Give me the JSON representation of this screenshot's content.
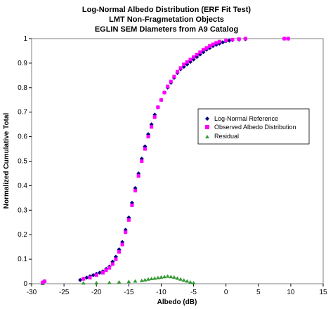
{
  "chart_data": {
    "type": "scatter",
    "title_lines": [
      "Log-Normal Albedo Distribution (ERF Fit Test)",
      "LMT Non-Fragmetation Objects",
      "EGLIN SEM Diameters from A9 Catalog"
    ],
    "xlabel": "Albedo (dB)",
    "ylabel": "Normalized Cumulative Total",
    "xlim": [
      -30,
      15
    ],
    "ylim": [
      0,
      1
    ],
    "x_ticks": [
      -30,
      -25,
      -20,
      -15,
      -10,
      -5,
      0,
      5,
      10,
      15
    ],
    "y_ticks": [
      0,
      0.1,
      0.2,
      0.3,
      0.4,
      0.5,
      0.6,
      0.7,
      0.8,
      0.9,
      1
    ],
    "x_tick_labels": [
      "-30",
      "-25",
      "-20",
      "-15",
      "-10",
      "-5",
      "0",
      "5",
      "10",
      "15"
    ],
    "y_tick_labels": [
      "0",
      "0.1",
      "0.2",
      "0.3",
      "0.4",
      "0.5",
      "0.6",
      "0.7",
      "0.8",
      "0.9",
      "1"
    ],
    "grid": false,
    "legend_position": "right",
    "series": [
      {
        "name": "Log-Normal Reference",
        "marker": "diamond",
        "color": "#000080",
        "x": [
          -28.3,
          -28.0,
          -22.5,
          -22.0,
          -21.5,
          -21.0,
          -20.5,
          -20.0,
          -19.5,
          -19.0,
          -18.5,
          -18.0,
          -17.5,
          -17.0,
          -16.5,
          -16.0,
          -15.5,
          -15.0,
          -14.5,
          -14.0,
          -13.5,
          -13.0,
          -12.5,
          -12.0,
          -11.5,
          -11.0,
          -10.5,
          -10.0,
          -9.5,
          -9.0,
          -8.5,
          -8.0,
          -7.5,
          -7.0,
          -6.5,
          -6.0,
          -5.5,
          -5.0,
          -4.5,
          -4.0,
          -3.5,
          -3.0,
          -2.5,
          -2.0,
          -1.5,
          -1.0,
          -0.5,
          0.0,
          0.5,
          1.0,
          2.0,
          3.0,
          9.0,
          9.6
        ],
        "y": [
          0.005,
          0.01,
          0.015,
          0.02,
          0.025,
          0.03,
          0.035,
          0.04,
          0.045,
          0.05,
          0.06,
          0.07,
          0.09,
          0.11,
          0.14,
          0.17,
          0.22,
          0.27,
          0.33,
          0.39,
          0.45,
          0.51,
          0.56,
          0.61,
          0.65,
          0.69,
          0.72,
          0.75,
          0.78,
          0.8,
          0.82,
          0.84,
          0.86,
          0.875,
          0.885,
          0.895,
          0.905,
          0.915,
          0.925,
          0.935,
          0.945,
          0.955,
          0.962,
          0.97,
          0.975,
          0.98,
          0.985,
          0.99,
          0.992,
          0.994,
          0.996,
          0.998,
          1.0,
          1.0
        ]
      },
      {
        "name": "Observed Albedo Distribution",
        "marker": "square",
        "color": "#ff00ff",
        "x": [
          -28.3,
          -28.0,
          -22.0,
          -21.0,
          -20.0,
          -19.0,
          -18.5,
          -18.0,
          -17.5,
          -17.0,
          -16.5,
          -16.0,
          -15.5,
          -15.0,
          -14.5,
          -14.0,
          -13.5,
          -13.0,
          -12.5,
          -12.0,
          -11.5,
          -11.0,
          -10.5,
          -10.0,
          -9.5,
          -9.0,
          -8.5,
          -8.0,
          -7.5,
          -7.0,
          -6.5,
          -6.0,
          -5.5,
          -5.0,
          -4.5,
          -4.0,
          -3.5,
          -3.0,
          -2.5,
          -2.0,
          -1.5,
          -1.0,
          0.0,
          1.0,
          2.0,
          3.0,
          9.0,
          9.6
        ],
        "y": [
          0.005,
          0.01,
          0.02,
          0.025,
          0.035,
          0.045,
          0.055,
          0.065,
          0.08,
          0.1,
          0.13,
          0.16,
          0.21,
          0.26,
          0.32,
          0.38,
          0.44,
          0.5,
          0.55,
          0.6,
          0.64,
          0.68,
          0.72,
          0.75,
          0.78,
          0.805,
          0.825,
          0.845,
          0.865,
          0.88,
          0.895,
          0.905,
          0.915,
          0.925,
          0.935,
          0.945,
          0.955,
          0.962,
          0.97,
          0.977,
          0.983,
          0.988,
          0.993,
          0.996,
          0.998,
          1.0,
          1.0,
          1.0
        ]
      },
      {
        "name": "Residual",
        "marker": "triangle",
        "color": "#339933",
        "x": [
          -28.3,
          -22.0,
          -20.0,
          -18.0,
          -16.5,
          -15.0,
          -14.0,
          -13.0,
          -12.5,
          -12.0,
          -11.5,
          -11.0,
          -10.5,
          -10.0,
          -9.5,
          -9.0,
          -8.5,
          -8.0,
          -7.5,
          -7.0,
          -6.5,
          -6.0,
          -5.5,
          -5.0
        ],
        "y": [
          0.0,
          0.002,
          0.003,
          0.004,
          0.006,
          0.008,
          0.01,
          0.012,
          0.015,
          0.018,
          0.02,
          0.022,
          0.024,
          0.026,
          0.028,
          0.03,
          0.028,
          0.026,
          0.022,
          0.018,
          0.014,
          0.01,
          0.006,
          0.003
        ]
      }
    ]
  }
}
